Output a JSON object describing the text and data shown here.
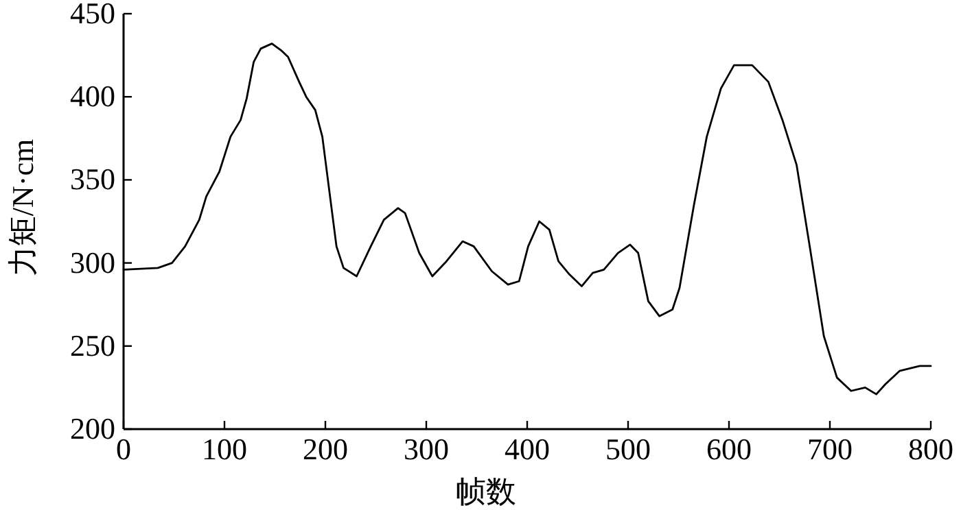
{
  "chart_data": {
    "type": "line",
    "xlabel": "帧数",
    "ylabel": "力矩/N·cm",
    "xlim": [
      0,
      800
    ],
    "ylim": [
      200,
      450
    ],
    "xticks": [
      0,
      100,
      200,
      300,
      400,
      500,
      600,
      700,
      800
    ],
    "yticks": [
      200,
      250,
      300,
      350,
      400,
      450
    ],
    "series": [
      {
        "color": "#000000",
        "x": [
          0,
          34,
          48,
          61,
          75,
          82,
          95,
          106,
          116,
          122,
          129,
          136,
          147,
          156,
          163,
          174,
          181,
          190,
          197,
          204,
          211,
          218,
          231,
          245,
          258,
          272,
          279,
          293,
          306,
          320,
          336,
          347,
          365,
          381,
          392,
          401,
          412,
          422,
          431,
          442,
          454,
          465,
          476,
          490,
          502,
          510,
          520,
          531,
          544,
          551,
          565,
          578,
          592,
          605,
          623,
          639,
          653,
          667,
          680,
          694,
          707,
          721,
          735,
          746,
          755,
          769,
          789,
          800
        ],
        "values": [
          296,
          297,
          300,
          310,
          326,
          340,
          355,
          376,
          386,
          399,
          421,
          429,
          432,
          428,
          424,
          409,
          400,
          392,
          376,
          343,
          310,
          297,
          292,
          310,
          326,
          333,
          330,
          306,
          292,
          301,
          313,
          310,
          295,
          287,
          289,
          310,
          325,
          320,
          301,
          293,
          286,
          294,
          296,
          306,
          311,
          306,
          277,
          268,
          272,
          285,
          334,
          376,
          405,
          419,
          419,
          409,
          386,
          359,
          310,
          256,
          231,
          223,
          225,
          221,
          227,
          235,
          238,
          238
        ]
      }
    ]
  }
}
